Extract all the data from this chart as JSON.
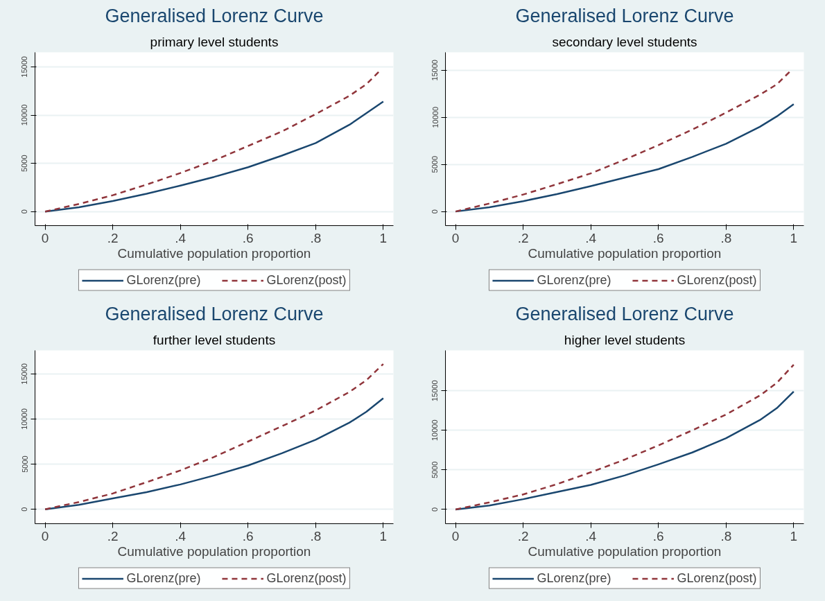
{
  "chart_data": [
    {
      "type": "line",
      "title": "Generalised Lorenz Curve",
      "subtitle": "primary level students",
      "xlabel": "Cumulative population proportion",
      "xlim": [
        -0.03,
        1.03
      ],
      "ylim": [
        -1450,
        16500
      ],
      "xticks": [
        {
          "value": 0,
          "label": "0"
        },
        {
          "value": 0.2,
          "label": ".2"
        },
        {
          "value": 0.4,
          "label": ".4"
        },
        {
          "value": 0.6,
          "label": ".6"
        },
        {
          "value": 0.8,
          "label": ".8"
        },
        {
          "value": 1,
          "label": "1"
        }
      ],
      "yticks": [
        0,
        5000,
        10000,
        15000
      ],
      "grid": "y",
      "legend": "bottom",
      "marker": "none",
      "series": [
        {
          "name": "GLorenz(pre)",
          "color": "#1a476f",
          "line_style": "solid",
          "x": [
            0,
            0.1,
            0.2,
            0.3,
            0.4,
            0.5,
            0.6,
            0.7,
            0.8,
            0.9,
            0.95,
            1
          ],
          "values": [
            0,
            450,
            1100,
            1850,
            2700,
            3600,
            4600,
            5800,
            7100,
            9000,
            10200,
            11400
          ]
        },
        {
          "name": "GLorenz(post)",
          "color": "#90353b",
          "line_style": "dashed",
          "x": [
            0,
            0.1,
            0.2,
            0.3,
            0.4,
            0.5,
            0.6,
            0.7,
            0.8,
            0.9,
            0.95,
            0.99
          ],
          "values": [
            0,
            800,
            1700,
            2800,
            4000,
            5300,
            6800,
            8300,
            10100,
            12000,
            13200,
            14600
          ]
        }
      ]
    },
    {
      "type": "line",
      "title": "Generalised Lorenz Curve",
      "subtitle": "secondary level students",
      "xlabel": "Cumulative population proportion",
      "xlim": [
        -0.03,
        1.03
      ],
      "ylim": [
        -1500,
        16900
      ],
      "xticks": [
        {
          "value": 0,
          "label": "0"
        },
        {
          "value": 0.2,
          "label": ".2"
        },
        {
          "value": 0.4,
          "label": ".4"
        },
        {
          "value": 0.6,
          "label": ".6"
        },
        {
          "value": 0.8,
          "label": ".8"
        },
        {
          "value": 1,
          "label": "1"
        }
      ],
      "yticks": [
        0,
        5000,
        10000,
        15000
      ],
      "grid": "y",
      "legend": "bottom",
      "marker": "none",
      "series": [
        {
          "name": "GLorenz(pre)",
          "color": "#1a476f",
          "line_style": "solid",
          "x": [
            0,
            0.1,
            0.2,
            0.3,
            0.4,
            0.5,
            0.6,
            0.7,
            0.8,
            0.9,
            0.95,
            1
          ],
          "values": [
            0,
            450,
            1100,
            1850,
            2700,
            3600,
            4500,
            5800,
            7200,
            9000,
            10100,
            11400
          ]
        },
        {
          "name": "GLorenz(post)",
          "color": "#90353b",
          "line_style": "dashed",
          "x": [
            0,
            0.1,
            0.2,
            0.3,
            0.4,
            0.5,
            0.6,
            0.7,
            0.8,
            0.9,
            0.95,
            0.99
          ],
          "values": [
            0,
            850,
            1800,
            2900,
            4050,
            5500,
            7050,
            8700,
            10500,
            12400,
            13500,
            14900
          ]
        }
      ]
    },
    {
      "type": "line",
      "title": "Generalised Lorenz Curve",
      "subtitle": "further level students",
      "xlabel": "Cumulative population proportion",
      "xlim": [
        -0.03,
        1.03
      ],
      "ylim": [
        -1600,
        17600
      ],
      "xticks": [
        {
          "value": 0,
          "label": "0"
        },
        {
          "value": 0.2,
          "label": ".2"
        },
        {
          "value": 0.4,
          "label": ".4"
        },
        {
          "value": 0.6,
          "label": ".6"
        },
        {
          "value": 0.8,
          "label": ".8"
        },
        {
          "value": 1,
          "label": "1"
        }
      ],
      "yticks": [
        0,
        5000,
        10000,
        15000
      ],
      "grid": "y",
      "legend": "bottom",
      "marker": "none",
      "series": [
        {
          "name": "GLorenz(pre)",
          "color": "#1a476f",
          "line_style": "solid",
          "x": [
            0,
            0.1,
            0.2,
            0.3,
            0.4,
            0.5,
            0.6,
            0.7,
            0.8,
            0.9,
            0.95,
            1
          ],
          "values": [
            0,
            500,
            1200,
            1900,
            2750,
            3750,
            4850,
            6200,
            7700,
            9600,
            10800,
            12300
          ]
        },
        {
          "name": "GLorenz(post)",
          "color": "#90353b",
          "line_style": "dashed",
          "x": [
            0,
            0.1,
            0.2,
            0.3,
            0.4,
            0.5,
            0.6,
            0.7,
            0.8,
            0.9,
            0.95,
            1
          ],
          "values": [
            0,
            800,
            1750,
            3000,
            4300,
            5800,
            7500,
            9200,
            10950,
            13000,
            14300,
            16100
          ]
        }
      ]
    },
    {
      "type": "line",
      "title": "Generalised Lorenz Curve",
      "subtitle": "higher level students",
      "xlabel": "Cumulative population proportion",
      "xlim": [
        -0.03,
        1.03
      ],
      "ylim": [
        -1800,
        20100
      ],
      "xticks": [
        {
          "value": 0,
          "label": "0"
        },
        {
          "value": 0.2,
          "label": ".2"
        },
        {
          "value": 0.4,
          "label": ".4"
        },
        {
          "value": 0.6,
          "label": ".6"
        },
        {
          "value": 0.8,
          "label": ".8"
        },
        {
          "value": 1,
          "label": "1"
        }
      ],
      "yticks": [
        0,
        5000,
        10000,
        15000
      ],
      "grid": "y",
      "legend": "bottom",
      "marker": "none",
      "series": [
        {
          "name": "GLorenz(pre)",
          "color": "#1a476f",
          "line_style": "solid",
          "x": [
            0,
            0.1,
            0.2,
            0.3,
            0.4,
            0.5,
            0.6,
            0.7,
            0.8,
            0.9,
            0.95,
            1
          ],
          "values": [
            0,
            500,
            1300,
            2200,
            3100,
            4300,
            5700,
            7200,
            9000,
            11300,
            12800,
            14900
          ]
        },
        {
          "name": "GLorenz(post)",
          "color": "#90353b",
          "line_style": "dashed",
          "x": [
            0,
            0.1,
            0.2,
            0.3,
            0.4,
            0.5,
            0.6,
            0.7,
            0.8,
            0.9,
            0.95,
            1
          ],
          "values": [
            0,
            900,
            1900,
            3200,
            4700,
            6300,
            8100,
            10000,
            12000,
            14400,
            16000,
            18300
          ]
        }
      ]
    }
  ]
}
